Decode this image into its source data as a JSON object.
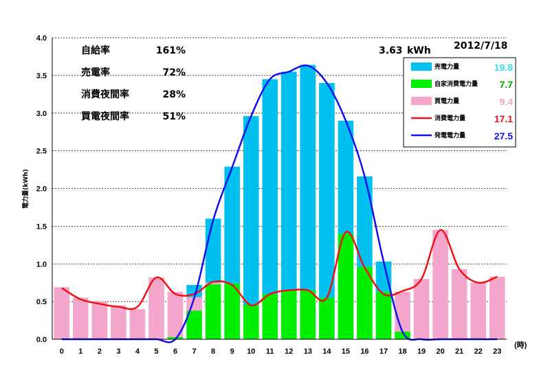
{
  "chart_data": {
    "type": "bar",
    "date": "2012/7/18",
    "peak_value": "3.63",
    "peak_unit": "kWh",
    "ylabel": "電力量(kWh)",
    "xunit": "(時)",
    "ylim": [
      0,
      4.0
    ],
    "yticks": [
      "0.0",
      "0.5",
      "1.0",
      "1.5",
      "2.0",
      "2.5",
      "3.0",
      "3.5",
      "4.0"
    ],
    "grid": true,
    "categories": [
      "0",
      "1",
      "2",
      "3",
      "4",
      "5",
      "6",
      "7",
      "8",
      "9",
      "10",
      "11",
      "12",
      "13",
      "14",
      "15",
      "16",
      "17",
      "18",
      "19",
      "20",
      "21",
      "22",
      "23"
    ],
    "stats": [
      {
        "label": "自給率",
        "value": "161%"
      },
      {
        "label": "売電率",
        "value": "72%"
      },
      {
        "label": "消費夜間率",
        "value": "28%"
      },
      {
        "label": "買電夜間率",
        "value": "51%"
      }
    ],
    "series": [
      {
        "name": "売電力量",
        "type": "bar",
        "color": "#00c0f0",
        "total": "19.8",
        "total_color": "#33ddee",
        "values": [
          0,
          0,
          0,
          0,
          0,
          0,
          0,
          0.16,
          0.85,
          1.55,
          2.5,
          2.85,
          2.9,
          2.99,
          2.85,
          1.5,
          1.2,
          0.4,
          0,
          0,
          0,
          0,
          0,
          0
        ]
      },
      {
        "name": "自家消費電力量",
        "type": "bar",
        "color": "#00ee00",
        "total": "7.7",
        "total_color": "#00aa00",
        "values": [
          0,
          0,
          0,
          0,
          0,
          0,
          0.03,
          0.38,
          0.73,
          0.74,
          0.46,
          0.6,
          0.65,
          0.65,
          0.55,
          1.4,
          0.96,
          0.63,
          0.1,
          0,
          0,
          0,
          0,
          0
        ]
      },
      {
        "name": "買電力量",
        "type": "bar",
        "color": "#f4a6cc",
        "total": "9.4",
        "total_color": "#f4a6cc",
        "values": [
          0.69,
          0.55,
          0.5,
          0.45,
          0.4,
          0.82,
          0.6,
          0.18,
          0.02,
          0,
          0,
          0,
          0,
          0,
          0,
          0,
          0,
          0,
          0.53,
          0.8,
          1.45,
          0.93,
          0.75,
          0.83
        ]
      },
      {
        "name": "消費電力量",
        "type": "line",
        "color": "#ee1111",
        "total": "17.1",
        "total_color": "#ee1111",
        "values": [
          0.68,
          0.53,
          0.47,
          0.43,
          0.43,
          0.82,
          0.6,
          0.6,
          0.76,
          0.72,
          0.45,
          0.6,
          0.65,
          0.65,
          0.55,
          1.42,
          0.95,
          0.6,
          0.64,
          0.8,
          1.45,
          0.93,
          0.75,
          0.83
        ]
      },
      {
        "name": "発電電力量",
        "type": "line",
        "color": "#1010ee",
        "total": "27.5",
        "total_color": "#1010ee",
        "values": [
          0,
          0,
          0,
          0,
          0,
          0,
          0,
          0.55,
          1.58,
          2.28,
          2.96,
          3.45,
          3.55,
          3.63,
          3.4,
          2.9,
          2.16,
          1.03,
          0.1,
          0,
          0,
          0,
          0,
          0
        ]
      }
    ]
  }
}
